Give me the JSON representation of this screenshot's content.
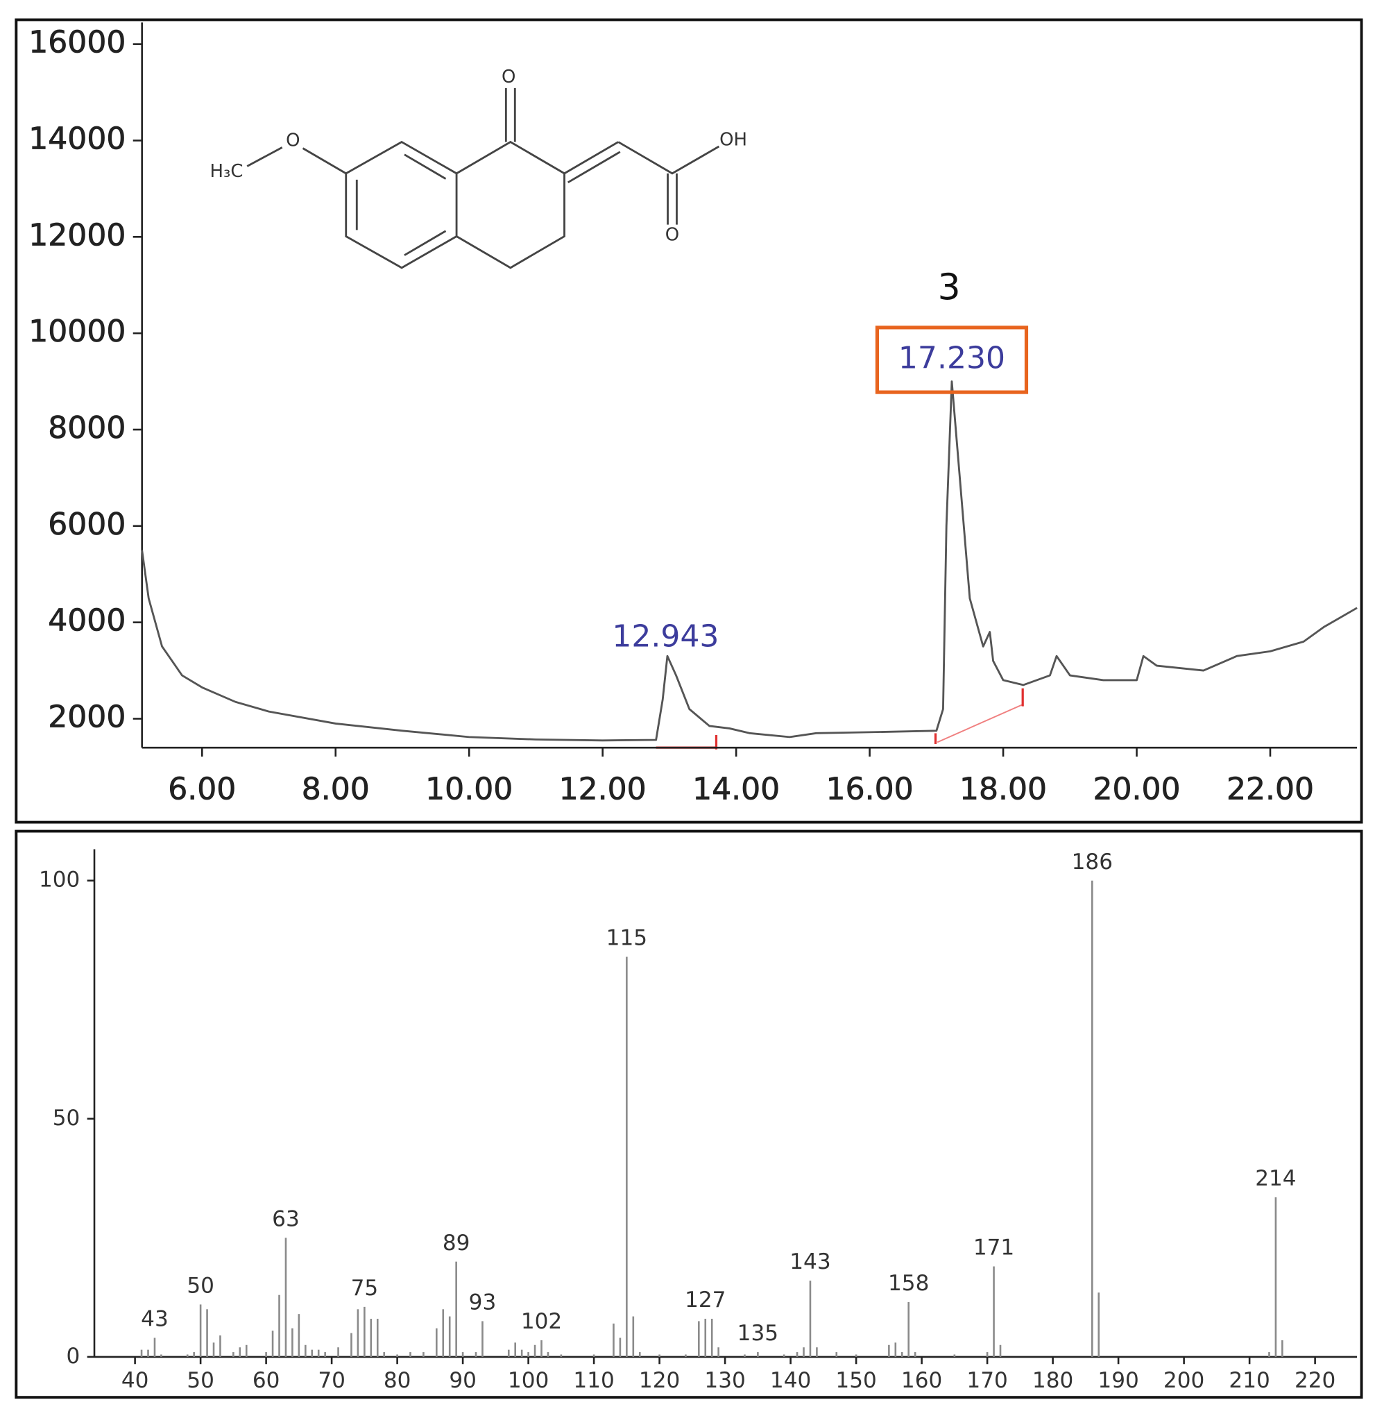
{
  "chart_data": [
    {
      "type": "line",
      "x": [
        5.1,
        5.2,
        5.4,
        5.7,
        6.0,
        6.5,
        7.0,
        8.0,
        9.0,
        10.0,
        11.0,
        12.0,
        12.8,
        12.9,
        12.97,
        13.1,
        13.3,
        13.6,
        13.9,
        14.2,
        14.8,
        15.2,
        16.0,
        17.0,
        17.1,
        17.15,
        17.23,
        17.35,
        17.5,
        17.7,
        17.8,
        17.85,
        18.0,
        18.3,
        18.7,
        18.8,
        19.0,
        19.5,
        20.0,
        20.1,
        20.3,
        21.0,
        21.5,
        22.0,
        22.5,
        22.8,
        23.3
      ],
      "series": [
        {
          "color": "#555555",
          "values": [
            5500,
            4500,
            3500,
            2900,
            2650,
            2350,
            2150,
            1900,
            1750,
            1620,
            1570,
            1550,
            1560,
            2400,
            3300,
            2900,
            2200,
            1850,
            1800,
            1700,
            1620,
            1700,
            1720,
            1750,
            2200,
            6000,
            9000,
            7000,
            4500,
            3500,
            3800,
            3200,
            2800,
            2700,
            2900,
            3300,
            2900,
            2800,
            2800,
            3300,
            3100,
            3000,
            3300,
            3400,
            3600,
            3900,
            4300
          ]
        }
      ],
      "xlim": [
        5.1,
        23.3
      ],
      "ylim": [
        1400,
        16450
      ],
      "xticks": [
        {
          "value": 6,
          "label": "6.00"
        },
        {
          "value": 8,
          "label": "8.00"
        },
        {
          "value": 10,
          "label": "10.00"
        },
        {
          "value": 12,
          "label": "12.00"
        },
        {
          "value": 14,
          "label": "14.00"
        },
        {
          "value": 16,
          "label": "16.00"
        },
        {
          "value": 18,
          "label": "18.00"
        },
        {
          "value": 20,
          "label": "20.00"
        },
        {
          "value": 22,
          "label": "22.00"
        }
      ],
      "yticks": [
        2000,
        4000,
        6000,
        8000,
        10000,
        12000,
        14000,
        16000
      ],
      "peak_labels": [
        {
          "label": "12.943",
          "color": "#3c3c9c"
        },
        {
          "label": "17.230",
          "color": "#3c3c9c",
          "compound": "3",
          "box_color": "#e8641e"
        }
      ]
    },
    {
      "type": "bar",
      "x": [
        41,
        42,
        43,
        44,
        48,
        49,
        50,
        51,
        52,
        53,
        55,
        56,
        57,
        60,
        61,
        62,
        63,
        64,
        65,
        66,
        67,
        68,
        69,
        71,
        73,
        74,
        75,
        76,
        77,
        78,
        80,
        82,
        84,
        86,
        87,
        88,
        89,
        90,
        92,
        93,
        97,
        98,
        99,
        100,
        101,
        102,
        103,
        105,
        110,
        113,
        114,
        115,
        116,
        117,
        120,
        124,
        126,
        127,
        128,
        129,
        133,
        135,
        139,
        141,
        142,
        143,
        144,
        147,
        150,
        155,
        156,
        157,
        158,
        159,
        165,
        170,
        171,
        172,
        186,
        187,
        213,
        214,
        215
      ],
      "values": [
        1.5,
        1.5,
        4,
        0.5,
        0.5,
        1,
        11,
        10,
        3,
        4.5,
        1,
        2,
        2.5,
        1,
        5.5,
        13,
        25,
        6,
        9,
        2.5,
        1.5,
        1.5,
        1,
        2,
        5,
        10,
        10.5,
        8,
        8,
        1,
        0.5,
        1,
        1,
        6,
        10,
        8.5,
        20,
        1,
        1,
        7.5,
        1.5,
        3,
        1.5,
        1,
        2.5,
        3.5,
        1,
        0.5,
        0.5,
        7,
        4,
        84,
        8.5,
        1,
        0.5,
        0.5,
        7.5,
        8,
        8,
        2,
        0.5,
        1,
        0.5,
        1,
        2,
        16,
        2,
        1,
        0.5,
        2.5,
        3,
        1,
        11.5,
        1,
        0.5,
        1,
        19,
        2.5,
        100,
        13.5,
        1,
        33.5,
        3.5
      ],
      "color": "#8a8a8a",
      "xlim": [
        33.8,
        226.4
      ],
      "ylim": [
        0,
        106.6
      ],
      "xticks": [
        40,
        50,
        60,
        70,
        80,
        90,
        100,
        110,
        120,
        130,
        140,
        150,
        160,
        170,
        180,
        190,
        200,
        210,
        220
      ],
      "yticks": [
        0,
        50,
        100
      ],
      "peak_labels": [
        43,
        50,
        63,
        75,
        89,
        93,
        102,
        115,
        127,
        135,
        143,
        158,
        171,
        186,
        214
      ]
    }
  ],
  "structure": {
    "labels": [
      "O",
      "OH",
      "O",
      "O",
      "H₃C"
    ]
  }
}
